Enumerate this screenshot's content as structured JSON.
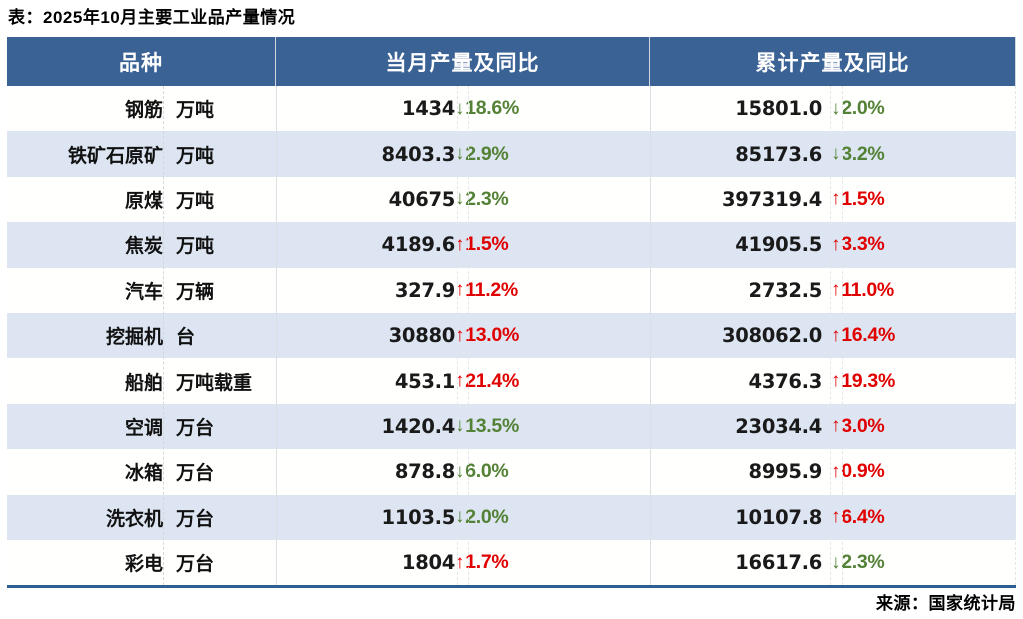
{
  "title": "表：2025年10月主要工业品产量情况",
  "source": "来源：国家统计局",
  "icons": {
    "up_arrow": "↑",
    "down_arrow": "↓"
  },
  "colors": {
    "up": "#e00000",
    "down": "#538135",
    "header_bg": "#3a6294",
    "header_text": "#ffffff",
    "stripe": "#dce5f1",
    "table_bottom_border": "#2e5e92"
  },
  "chart_data": {
    "type": "table",
    "title": "表：2025年10月主要工业品产量情况",
    "headers": [
      "品种",
      "当月产量及同比",
      "累计产量及同比"
    ],
    "rows": [
      {
        "name": "钢筋",
        "unit": "万吨",
        "monthly": {
          "value": "1434",
          "dir": "down",
          "pct": "18.6%"
        },
        "cumulative": {
          "value": "15801.0",
          "dir": "down",
          "pct": "2.0%"
        }
      },
      {
        "name": "铁矿石原矿",
        "unit": "万吨",
        "monthly": {
          "value": "8403.3",
          "dir": "down",
          "pct": "2.9%"
        },
        "cumulative": {
          "value": "85173.6",
          "dir": "down",
          "pct": "3.2%"
        }
      },
      {
        "name": "原煤",
        "unit": "万吨",
        "monthly": {
          "value": "40675",
          "dir": "down",
          "pct": "2.3%"
        },
        "cumulative": {
          "value": "397319.4",
          "dir": "up",
          "pct": "1.5%"
        }
      },
      {
        "name": "焦炭",
        "unit": "万吨",
        "monthly": {
          "value": "4189.6",
          "dir": "up",
          "pct": "1.5%"
        },
        "cumulative": {
          "value": "41905.5",
          "dir": "up",
          "pct": "3.3%"
        }
      },
      {
        "name": "汽车",
        "unit": "万辆",
        "monthly": {
          "value": "327.9",
          "dir": "up",
          "pct": "11.2%"
        },
        "cumulative": {
          "value": "2732.5",
          "dir": "up",
          "pct": "11.0%"
        }
      },
      {
        "name": "挖掘机",
        "unit": "台",
        "monthly": {
          "value": "30880",
          "dir": "up",
          "pct": "13.0%"
        },
        "cumulative": {
          "value": "308062.0",
          "dir": "up",
          "pct": "16.4%"
        }
      },
      {
        "name": "船舶",
        "unit": "万吨载重",
        "monthly": {
          "value": "453.1",
          "dir": "up",
          "pct": "21.4%"
        },
        "cumulative": {
          "value": "4376.3",
          "dir": "up",
          "pct": "19.3%"
        }
      },
      {
        "name": "空调",
        "unit": "万台",
        "monthly": {
          "value": "1420.4",
          "dir": "down",
          "pct": "13.5%"
        },
        "cumulative": {
          "value": "23034.4",
          "dir": "up",
          "pct": "3.0%"
        }
      },
      {
        "name": "冰箱",
        "unit": "万台",
        "monthly": {
          "value": "878.8",
          "dir": "down",
          "pct": "6.0%"
        },
        "cumulative": {
          "value": "8995.9",
          "dir": "up",
          "pct": "0.9%"
        }
      },
      {
        "name": "洗衣机",
        "unit": "万台",
        "monthly": {
          "value": "1103.5",
          "dir": "down",
          "pct": "2.0%"
        },
        "cumulative": {
          "value": "10107.8",
          "dir": "up",
          "pct": "6.4%"
        }
      },
      {
        "name": "彩电",
        "unit": "万台",
        "monthly": {
          "value": "1804",
          "dir": "up",
          "pct": "1.7%"
        },
        "cumulative": {
          "value": "16617.6",
          "dir": "down",
          "pct": "2.3%"
        }
      }
    ]
  }
}
